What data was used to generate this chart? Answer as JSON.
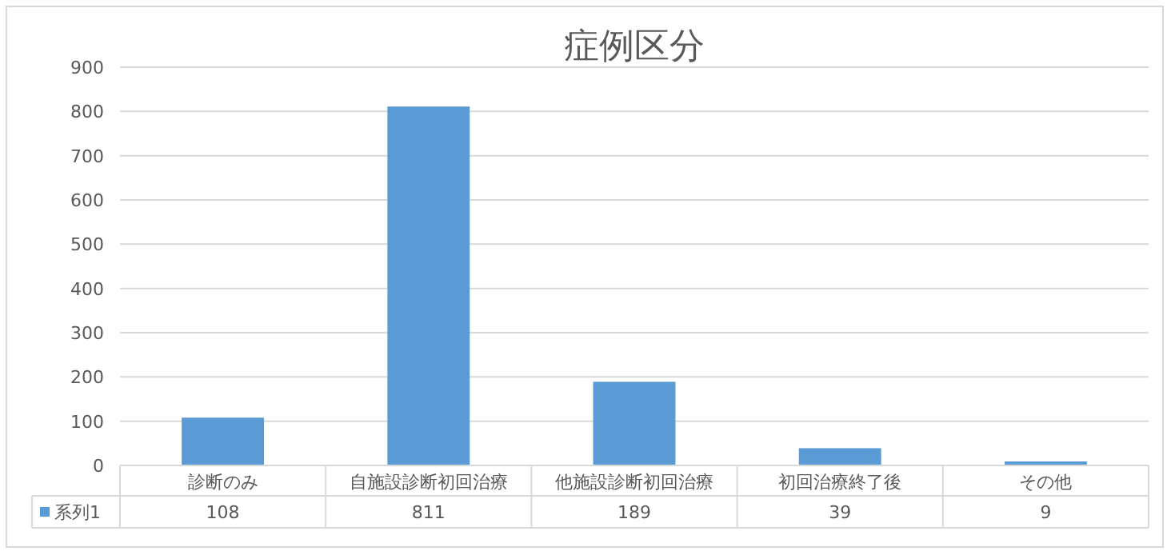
{
  "chart_data": {
    "type": "bar",
    "title": "症例区分",
    "categories": [
      "診断のみ",
      "自施設診断初回治療",
      "他施設診断初回治療",
      "初回治療終了後",
      "その他"
    ],
    "series": [
      {
        "name": "系列1",
        "color": "#5b9bd5",
        "values": [
          108,
          811,
          189,
          39,
          9
        ]
      }
    ],
    "ylim": [
      0,
      900
    ],
    "yticks": [
      0,
      100,
      200,
      300,
      400,
      500,
      600,
      700,
      800,
      900
    ],
    "grid": "y",
    "data_labels": true,
    "legend": "bottom"
  }
}
